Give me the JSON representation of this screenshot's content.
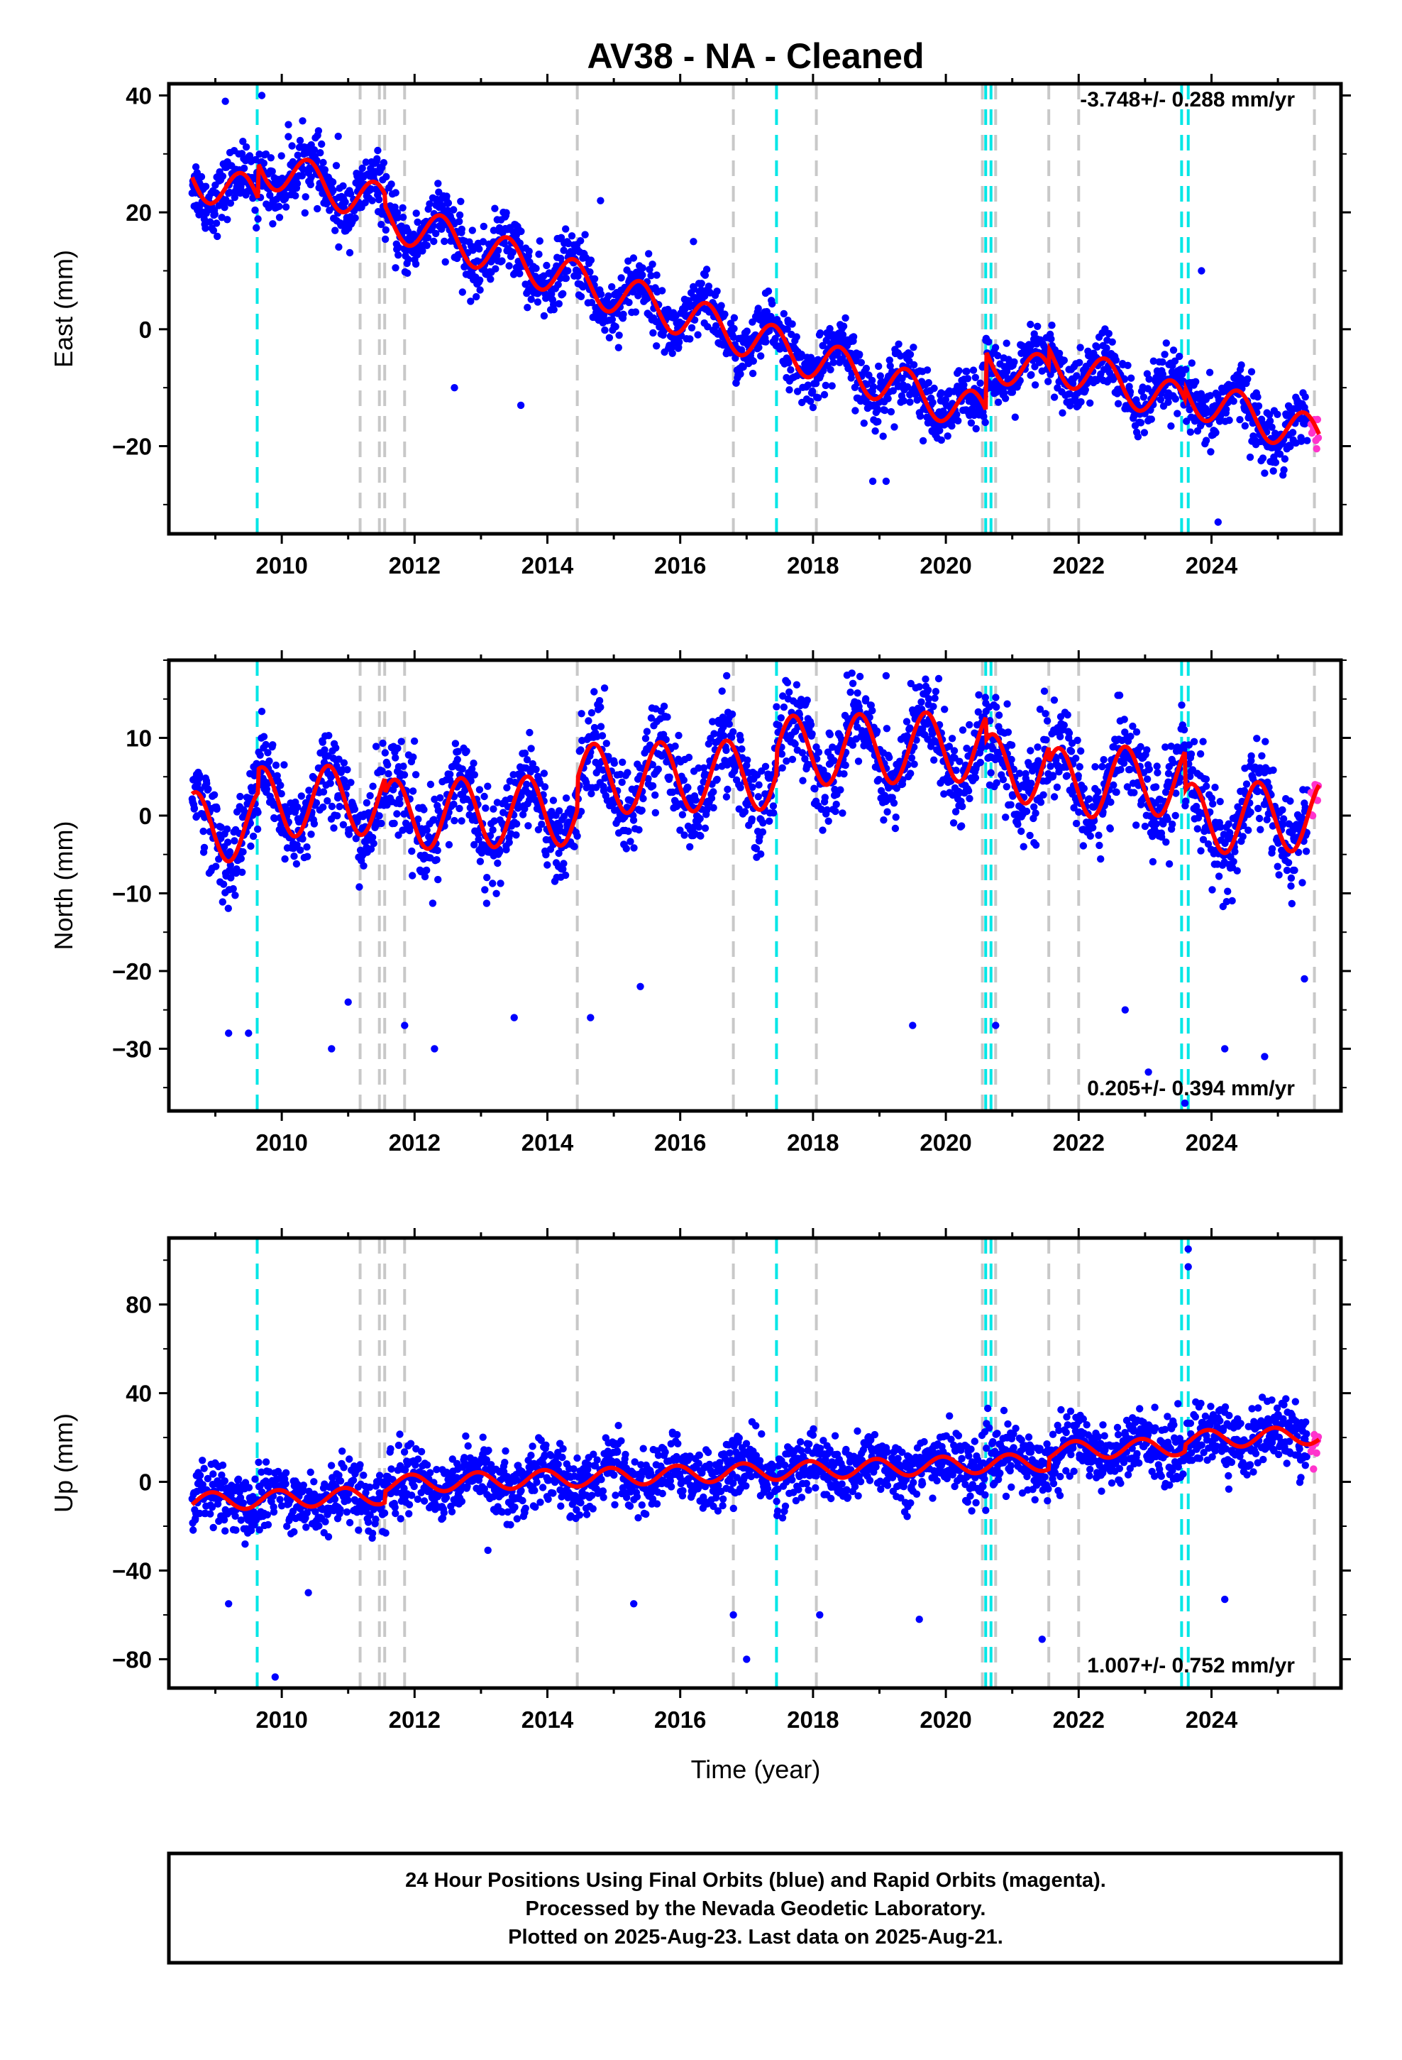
{
  "figure": {
    "title": "AV38  - NA - Cleaned",
    "xlabel": "Time (year)",
    "caption": [
      "24 Hour Positions Using Final Orbits (blue) and Rapid Orbits (magenta).",
      "Processed by the Nevada Geodetic Laboratory.",
      "Plotted on 2025-Aug-23. Last data on 2025-Aug-21."
    ],
    "colors": {
      "final_orbits": "#0000ff",
      "rapid_orbits": "#ff33cc",
      "model_fit": "#ff0000",
      "equipment_change": "#c8c8c8",
      "earthquake": "#00e6e6"
    }
  },
  "chart_data": [
    {
      "type": "scatter",
      "component": "east",
      "ylabel": "East (mm)",
      "rate_text": "-3.748+/- 0.288 mm/yr",
      "xlim": [
        2008.3,
        2025.95
      ],
      "ylim": [
        -35,
        42
      ],
      "xticks": [
        2010,
        2012,
        2014,
        2016,
        2018,
        2020,
        2022,
        2024
      ],
      "yticks": [
        -20,
        0,
        20,
        40
      ],
      "series": [
        {
          "name": "Final Orbits (blue)",
          "role": "final",
          "color": "#0000ff",
          "x_range": [
            2008.65,
            2025.45
          ],
          "noise_sd": 2.6
        },
        {
          "name": "Rapid Orbits (magenta)",
          "role": "rapid",
          "color": "#ff33cc",
          "x_range": [
            2025.5,
            2025.62
          ],
          "noise_sd": 2.0
        },
        {
          "name": "Model fit",
          "role": "model",
          "color": "#ff0000",
          "model": {
            "t0": 2008.65,
            "offset": 26.0,
            "rate": -3.748,
            "annual_amp": 3.5,
            "annual_phase": 0.15,
            "steps": [
              [
                2009.65,
                6.0
              ],
              [
                2011.55,
                -2.0
              ],
              [
                2020.6,
                10.0
              ],
              [
                2021.55,
                3.0
              ],
              [
                2023.6,
                2.0
              ]
            ]
          }
        }
      ],
      "outliers": [
        [
          2009.15,
          39
        ],
        [
          2009.7,
          40
        ],
        [
          2010.85,
          33
        ],
        [
          2012.6,
          -10
        ],
        [
          2014.8,
          22
        ],
        [
          2013.6,
          -13
        ],
        [
          2018.9,
          -26
        ],
        [
          2019.1,
          -26
        ],
        [
          2023.85,
          10
        ],
        [
          2024.1,
          -33
        ],
        [
          2016.2,
          15
        ],
        [
          2010.1,
          35
        ]
      ],
      "earthquakes": [
        2009.63,
        2017.45,
        2020.6,
        2020.68,
        2023.55,
        2023.65
      ],
      "equipment_changes": [
        2011.18,
        2011.47,
        2011.55,
        2011.85,
        2014.45,
        2016.8,
        2018.05,
        2020.55,
        2020.75,
        2021.55,
        2022.0,
        2025.55
      ]
    },
    {
      "type": "scatter",
      "component": "north",
      "ylabel": "North (mm)",
      "rate_text": "0.205+/- 0.394 mm/yr",
      "xlim": [
        2008.3,
        2025.95
      ],
      "ylim": [
        -38,
        20
      ],
      "xticks": [
        2010,
        2012,
        2014,
        2016,
        2018,
        2020,
        2022,
        2024
      ],
      "yticks": [
        -30,
        -20,
        -10,
        0,
        10
      ],
      "series": [
        {
          "name": "Final Orbits (blue)",
          "role": "final",
          "color": "#0000ff",
          "x_range": [
            2008.65,
            2025.45
          ],
          "noise_sd": 2.8
        },
        {
          "name": "Rapid Orbits (magenta)",
          "role": "rapid",
          "color": "#ff33cc",
          "x_range": [
            2025.5,
            2025.62
          ],
          "noise_sd": 2.5
        },
        {
          "name": "Model fit",
          "role": "model",
          "color": "#ff0000",
          "model": {
            "t0": 2008.65,
            "offset": -1.5,
            "rate": 0.205,
            "annual_amp": 4.5,
            "annual_phase": 0.45,
            "steps": [
              [
                2009.65,
                3.0
              ],
              [
                2011.55,
                -2.0
              ],
              [
                2014.45,
                4.0
              ],
              [
                2017.45,
                3.0
              ],
              [
                2020.6,
                -3.0
              ],
              [
                2021.55,
                -2.0
              ],
              [
                2023.6,
                -5.0
              ]
            ]
          }
        }
      ],
      "outliers": [
        [
          2009.2,
          -28
        ],
        [
          2009.5,
          -28
        ],
        [
          2010.75,
          -30
        ],
        [
          2011.0,
          -24
        ],
        [
          2011.85,
          -27
        ],
        [
          2012.3,
          -30
        ],
        [
          2013.5,
          -26
        ],
        [
          2014.65,
          -26
        ],
        [
          2016.7,
          18
        ],
        [
          2017.45,
          14
        ],
        [
          2019.1,
          18
        ],
        [
          2019.5,
          -27
        ],
        [
          2020.75,
          -27
        ],
        [
          2023.05,
          -33
        ],
        [
          2023.6,
          -37
        ],
        [
          2024.2,
          -30
        ],
        [
          2024.8,
          -31
        ],
        [
          2025.4,
          -21
        ],
        [
          2022.7,
          -25
        ],
        [
          2015.4,
          -22
        ],
        [
          2018.6,
          17
        ]
      ],
      "earthquakes": [
        2009.63,
        2017.45,
        2020.6,
        2020.68,
        2023.55,
        2023.65
      ],
      "equipment_changes": [
        2011.18,
        2011.47,
        2011.55,
        2011.85,
        2014.45,
        2016.8,
        2018.05,
        2020.55,
        2020.75,
        2021.55,
        2022.0,
        2025.55
      ]
    },
    {
      "type": "scatter",
      "component": "up",
      "ylabel": "Up (mm)",
      "rate_text": "1.007+/- 0.752 mm/yr",
      "xlim": [
        2008.3,
        2025.95
      ],
      "ylim": [
        -93,
        110
      ],
      "xticks": [
        2010,
        2012,
        2014,
        2016,
        2018,
        2020,
        2022,
        2024
      ],
      "yticks": [
        -80,
        -40,
        0,
        40,
        80
      ],
      "series": [
        {
          "name": "Final Orbits (blue)",
          "role": "final",
          "color": "#0000ff",
          "x_range": [
            2008.65,
            2025.45
          ],
          "noise_sd": 7.0
        },
        {
          "name": "Rapid Orbits (magenta)",
          "role": "rapid",
          "color": "#ff33cc",
          "x_range": [
            2025.5,
            2025.62
          ],
          "noise_sd": 4.0
        },
        {
          "name": "Model fit",
          "role": "model",
          "color": "#ff0000",
          "model": {
            "t0": 2008.65,
            "offset": -9.0,
            "rate": 1.007,
            "annual_amp": 4.0,
            "annual_phase": 0.7,
            "steps": [
              [
                2011.55,
                5.0
              ],
              [
                2021.55,
                5.0
              ],
              [
                2023.6,
                3.0
              ]
            ]
          }
        }
      ],
      "outliers": [
        [
          2009.9,
          -88
        ],
        [
          2017.0,
          -80
        ],
        [
          2016.8,
          -60
        ],
        [
          2021.45,
          -71
        ],
        [
          2023.65,
          105
        ],
        [
          2023.65,
          97
        ],
        [
          2009.2,
          -55
        ],
        [
          2010.4,
          -50
        ],
        [
          2015.3,
          -55
        ],
        [
          2018.1,
          -60
        ],
        [
          2024.2,
          -53
        ],
        [
          2019.6,
          -62
        ]
      ],
      "earthquakes": [
        2009.63,
        2017.45,
        2020.6,
        2020.68,
        2023.55,
        2023.65
      ],
      "equipment_changes": [
        2011.18,
        2011.47,
        2011.55,
        2011.85,
        2014.45,
        2016.8,
        2018.05,
        2020.55,
        2020.75,
        2021.55,
        2022.0,
        2025.55
      ]
    }
  ]
}
